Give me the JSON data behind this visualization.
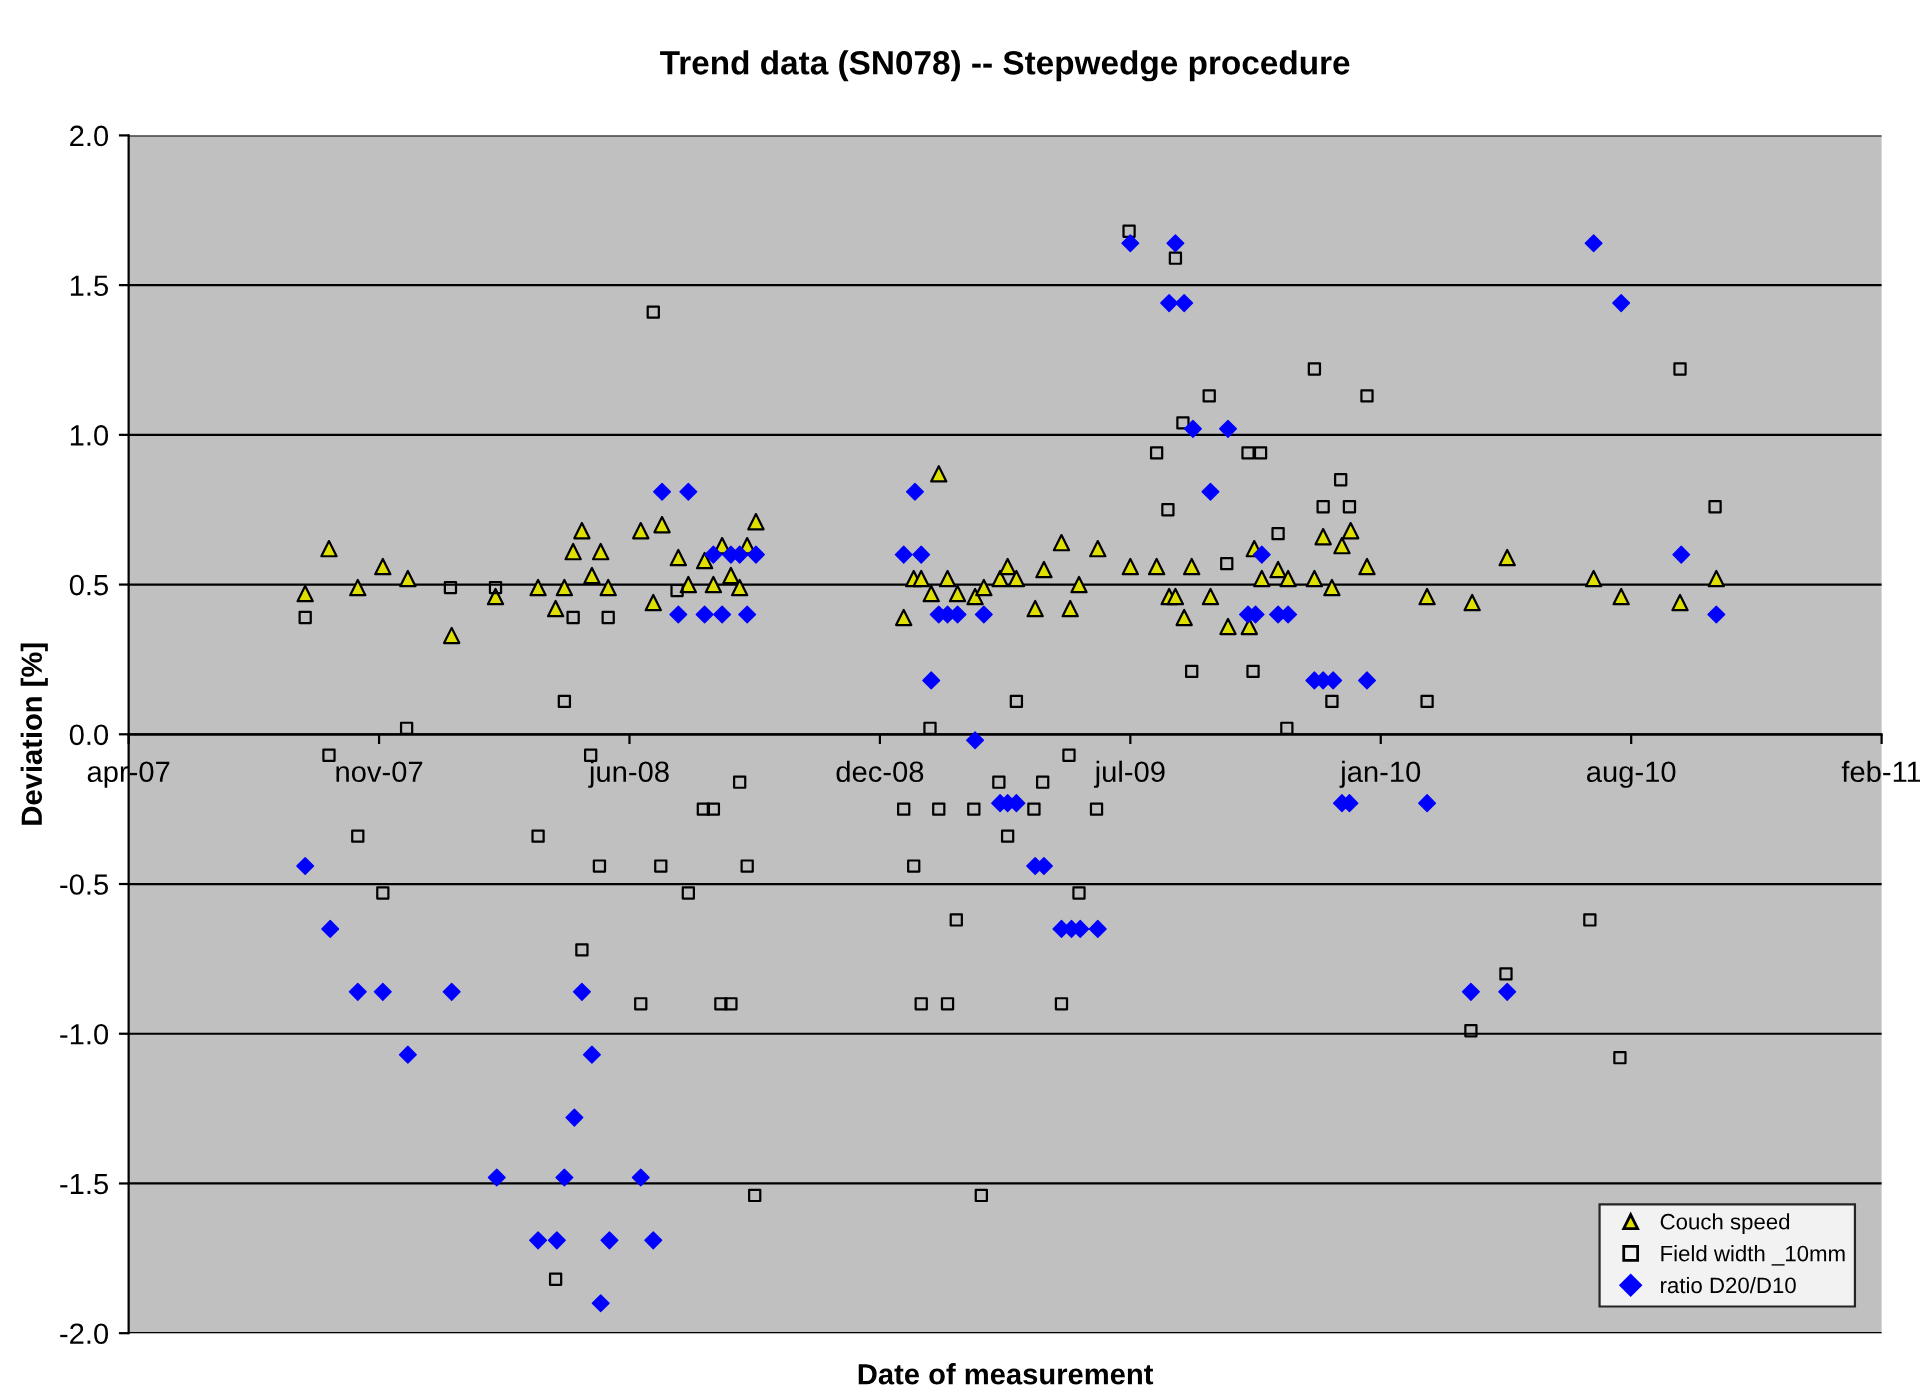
{
  "chart_data": {
    "type": "scatter",
    "title": "Trend data (SN078) -- Stepwedge procedure",
    "xlabel": "Date of measurement",
    "ylabel": "Deviation [%]",
    "xlim": [
      "2007-04-28",
      "2011-02-26"
    ],
    "xticks": [
      {
        "value": "2007-04-28",
        "label": "apr-07"
      },
      {
        "value": "2007-11-14",
        "label": "nov-07"
      },
      {
        "value": "2008-06-01",
        "label": "jun-08"
      },
      {
        "value": "2008-12-18",
        "label": "dec-08"
      },
      {
        "value": "2009-07-06",
        "label": "jul-09"
      },
      {
        "value": "2010-01-22",
        "label": "jan-10"
      },
      {
        "value": "2010-08-10",
        "label": "aug-10"
      },
      {
        "value": "2011-02-26",
        "label": "feb-11"
      }
    ],
    "ylim": [
      -2,
      2
    ],
    "yticks": [
      {
        "value": -2,
        "label": "-2.0"
      },
      {
        "value": -1.5,
        "label": "-1.5"
      },
      {
        "value": -1,
        "label": "-1.0"
      },
      {
        "value": -0.5,
        "label": "-0.5"
      },
      {
        "value": 0,
        "label": "0.0"
      },
      {
        "value": 0.5,
        "label": "0.5"
      },
      {
        "value": 1,
        "label": "1.0"
      },
      {
        "value": 1.5,
        "label": "1.5"
      },
      {
        "value": 2,
        "label": "2.0"
      }
    ],
    "grid": "y",
    "legend": "bottom right",
    "series": [
      {
        "name": "Couch speed",
        "color": "#e0e000",
        "marker": "triangle",
        "x": [
          "2007-09-16",
          "2007-10-05",
          "2007-10-28",
          "2007-11-17",
          "2007-12-07",
          "2008-01-11",
          "2008-02-15",
          "2008-03-20",
          "2008-04-03",
          "2008-04-10",
          "2008-04-17",
          "2008-04-24",
          "2008-05-02",
          "2008-05-09",
          "2008-05-15",
          "2008-06-10",
          "2008-06-20",
          "2008-06-27",
          "2008-07-10",
          "2008-07-18",
          "2008-07-31",
          "2008-08-07",
          "2008-08-14",
          "2008-08-21",
          "2008-08-28",
          "2008-09-03",
          "2008-09-10",
          "2009-01-06",
          "2009-01-14",
          "2009-01-20",
          "2009-01-28",
          "2009-02-03",
          "2009-02-10",
          "2009-02-18",
          "2009-03-04",
          "2009-03-11",
          "2009-03-24",
          "2009-03-30",
          "2009-04-06",
          "2009-04-21",
          "2009-04-28",
          "2009-05-12",
          "2009-05-19",
          "2009-05-26",
          "2009-06-10",
          "2009-07-06",
          "2009-07-27",
          "2009-08-06",
          "2009-08-11",
          "2009-08-18",
          "2009-08-24",
          "2009-09-08",
          "2009-09-22",
          "2009-10-09",
          "2009-10-13",
          "2009-10-19",
          "2009-11-01",
          "2009-11-09",
          "2009-11-30",
          "2009-12-07",
          "2009-12-14",
          "2009-12-22",
          "2009-12-29",
          "2010-01-11",
          "2010-02-28",
          "2010-04-05",
          "2010-05-03",
          "2010-07-11",
          "2010-08-02",
          "2010-09-18",
          "2010-10-17"
        ],
        "values": [
          0.47,
          0.62,
          0.49,
          0.56,
          0.52,
          0.33,
          0.46,
          0.49,
          0.42,
          0.49,
          0.61,
          0.68,
          0.53,
          0.61,
          0.49,
          0.68,
          0.44,
          0.7,
          0.59,
          0.5,
          0.58,
          0.5,
          0.63,
          0.53,
          0.49,
          0.63,
          0.71,
          0.39,
          0.52,
          0.52,
          0.47,
          0.87,
          0.52,
          0.47,
          0.46,
          0.49,
          0.52,
          0.56,
          0.52,
          0.42,
          0.55,
          0.64,
          0.42,
          0.5,
          0.62,
          0.56,
          0.56,
          0.46,
          0.46,
          0.39,
          0.56,
          0.46,
          0.36,
          0.36,
          0.62,
          0.52,
          0.55,
          0.52,
          0.52,
          0.66,
          0.49,
          0.63,
          0.68,
          0.56,
          0.46,
          0.44,
          0.59,
          0.52,
          0.46,
          0.44,
          0.52
        ]
      },
      {
        "name": "Field width _10mm",
        "color": "#000000",
        "marker": "square",
        "x": [
          "2007-09-16",
          "2007-10-05",
          "2007-10-28",
          "2007-11-17",
          "2007-12-06",
          "2008-01-10",
          "2008-02-15",
          "2008-03-20",
          "2008-04-03",
          "2008-04-10",
          "2008-04-17",
          "2008-04-24",
          "2008-05-01",
          "2008-05-08",
          "2008-05-15",
          "2008-06-10",
          "2008-06-20",
          "2008-06-26",
          "2008-07-09",
          "2008-07-18",
          "2008-07-30",
          "2008-08-07",
          "2008-08-13",
          "2008-08-21",
          "2008-08-28",
          "2008-09-03",
          "2008-09-09",
          "2009-01-06",
          "2009-01-14",
          "2009-01-20",
          "2009-01-27",
          "2009-02-03",
          "2009-02-10",
          "2009-02-17",
          "2009-03-03",
          "2009-03-09",
          "2009-03-23",
          "2009-03-30",
          "2009-04-06",
          "2009-04-20",
          "2009-04-27",
          "2009-05-12",
          "2009-05-18",
          "2009-05-26",
          "2009-06-09",
          "2009-07-05",
          "2009-07-27",
          "2009-08-05",
          "2009-08-11",
          "2009-08-17",
          "2009-08-24",
          "2009-09-07",
          "2009-09-21",
          "2009-10-08",
          "2009-10-12",
          "2009-10-18",
          "2009-11-01",
          "2009-11-08",
          "2009-11-30",
          "2009-12-07",
          "2009-12-14",
          "2009-12-21",
          "2009-12-28",
          "2010-01-11",
          "2010-02-28",
          "2010-04-04",
          "2010-05-02",
          "2010-07-08",
          "2010-08-01",
          "2010-09-18",
          "2010-10-16"
        ],
        "values": [
          0.39,
          -0.07,
          -0.34,
          -0.53,
          0.02,
          0.49,
          0.49,
          -0.34,
          -1.82,
          0.11,
          0.39,
          -0.72,
          -0.07,
          -0.44,
          0.39,
          -0.9,
          1.41,
          -0.44,
          0.48,
          -0.53,
          -0.25,
          -0.25,
          -0.9,
          -0.9,
          -0.16,
          -0.44,
          -1.54,
          -0.25,
          -0.44,
          -0.9,
          0.02,
          -0.25,
          -0.9,
          -0.62,
          -0.25,
          -1.54,
          -0.16,
          -0.34,
          0.11,
          -0.25,
          -0.16,
          -0.9,
          -0.07,
          -0.53,
          -0.25,
          1.68,
          0.94,
          0.75,
          1.59,
          1.04,
          0.21,
          1.13,
          0.57,
          0.94,
          0.21,
          0.94,
          0.67,
          0.02,
          1.22,
          0.76,
          0.11,
          0.85,
          0.76,
          1.13,
          0.11,
          -0.99,
          -0.8,
          -0.62,
          -1.08,
          1.22,
          0.76
        ]
      },
      {
        "name": "ratio D20/D10",
        "color": "#0000ff",
        "marker": "diamond",
        "x": [
          "2007-09-16",
          "2007-10-06",
          "2007-10-28",
          "2007-11-17",
          "2007-12-07",
          "2008-01-11",
          "2008-02-16",
          "2008-03-20",
          "2008-04-04",
          "2008-04-10",
          "2008-04-18",
          "2008-04-24",
          "2008-05-02",
          "2008-05-09",
          "2008-05-16",
          "2008-06-10",
          "2008-06-20",
          "2008-06-27",
          "2008-07-10",
          "2008-07-18",
          "2008-07-31",
          "2008-08-07",
          "2008-08-14",
          "2008-08-21",
          "2008-08-28",
          "2008-09-03",
          "2008-09-10",
          "2009-01-06",
          "2009-01-15",
          "2009-01-20",
          "2009-01-28",
          "2009-02-03",
          "2009-02-10",
          "2009-02-18",
          "2009-03-04",
          "2009-03-11",
          "2009-03-24",
          "2009-03-30",
          "2009-04-06",
          "2009-04-21",
          "2009-04-28",
          "2009-05-12",
          "2009-05-20",
          "2009-05-27",
          "2009-06-10",
          "2009-07-06",
          "2009-08-06",
          "2009-08-11",
          "2009-08-18",
          "2009-08-25",
          "2009-09-08",
          "2009-09-22",
          "2009-10-08",
          "2009-10-14",
          "2009-10-19",
          "2009-11-01",
          "2009-11-09",
          "2009-11-30",
          "2009-12-07",
          "2009-12-15",
          "2009-12-22",
          "2009-12-28",
          "2010-01-11",
          "2010-02-28",
          "2010-04-04",
          "2010-05-03",
          "2010-07-11",
          "2010-08-02",
          "2010-09-19",
          "2010-10-17"
        ],
        "values": [
          -0.44,
          -0.65,
          -0.86,
          -0.86,
          -1.07,
          -0.86,
          -1.48,
          -1.69,
          -1.69,
          -1.48,
          -1.28,
          -0.86,
          -1.07,
          -1.9,
          -1.69,
          -1.48,
          -1.69,
          0.81,
          0.4,
          0.81,
          0.4,
          0.6,
          0.4,
          0.6,
          0.6,
          0.4,
          0.6,
          0.6,
          0.81,
          0.6,
          0.18,
          0.4,
          0.4,
          0.4,
          -0.02,
          0.4,
          -0.23,
          -0.23,
          -0.23,
          -0.44,
          -0.44,
          -0.65,
          -0.65,
          -0.65,
          -0.65,
          1.64,
          1.44,
          1.64,
          1.44,
          1.02,
          0.81,
          1.02,
          0.4,
          0.4,
          0.6,
          0.4,
          0.4,
          0.18,
          0.18,
          0.18,
          -0.23,
          -0.23,
          0.18,
          -0.23,
          -0.86,
          -0.86,
          1.64,
          1.44,
          0.6,
          0.4
        ]
      }
    ]
  }
}
